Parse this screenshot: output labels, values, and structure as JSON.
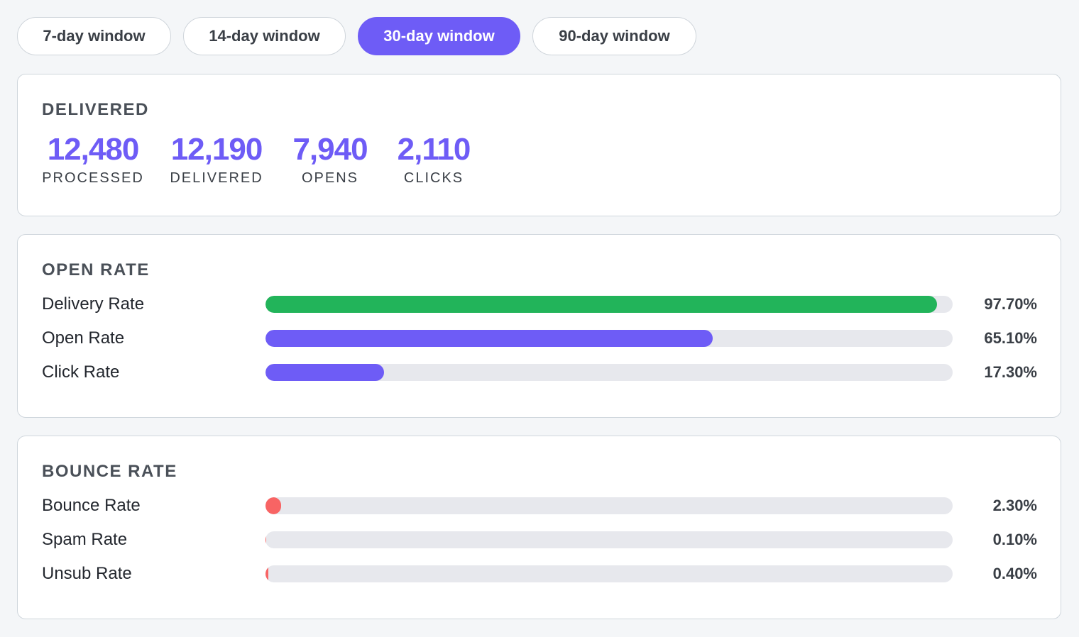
{
  "tabs": {
    "items": [
      "7-day window",
      "14-day window",
      "30-day window",
      "90-day window"
    ],
    "active": 2
  },
  "summary": {
    "title": "DELIVERED",
    "stats": [
      {
        "value": "12,480",
        "label": "PROCESSED"
      },
      {
        "value": "12,190",
        "label": "DELIVERED"
      },
      {
        "value": "7,940",
        "label": "OPENS"
      },
      {
        "value": "2,110",
        "label": "CLICKS"
      }
    ]
  },
  "sections": [
    {
      "title": "OPEN RATE",
      "xlim": [
        0,
        100
      ],
      "rows": [
        {
          "label": "Delivery Rate",
          "value": 97.7,
          "value_label": "97.70%",
          "color": "#22b45a"
        },
        {
          "label": "Open Rate",
          "value": 65.1,
          "value_label": "65.10%",
          "color": "#6e5cf6"
        },
        {
          "label": "Click Rate",
          "value": 17.3,
          "value_label": "17.30%",
          "color": "#6e5cf6"
        }
      ]
    },
    {
      "title": "BOUNCE RATE",
      "xlim": [
        0,
        100
      ],
      "rows": [
        {
          "label": "Bounce Rate",
          "value": 2.3,
          "value_label": "2.30%",
          "color": "#f86464"
        },
        {
          "label": "Spam Rate",
          "value": 0.1,
          "value_label": "0.10%",
          "color": "#f86464"
        },
        {
          "label": "Unsub Rate",
          "value": 0.4,
          "value_label": "0.40%",
          "color": "#f86464"
        }
      ]
    }
  ]
}
